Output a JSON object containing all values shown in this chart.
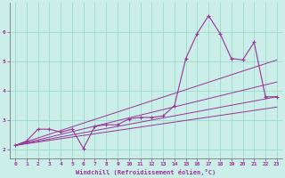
{
  "xlabel": "Windchill (Refroidissement éolien,°C)",
  "background_color": "#cceee8",
  "grid_color": "#99ddcc",
  "line_color": "#993399",
  "spine_color": "#666666",
  "xlim": [
    -0.5,
    23.5
  ],
  "ylim": [
    1.7,
    7.0
  ],
  "yticks": [
    2,
    3,
    4,
    5,
    6
  ],
  "xticks": [
    0,
    1,
    2,
    3,
    4,
    5,
    6,
    7,
    8,
    9,
    10,
    11,
    12,
    13,
    14,
    15,
    16,
    17,
    18,
    19,
    20,
    21,
    22,
    23
  ],
  "series1_x": [
    0,
    1,
    2,
    3,
    4,
    5,
    6,
    7,
    8,
    9,
    10,
    11,
    12,
    13,
    14,
    15,
    16,
    17,
    18,
    19,
    20,
    21,
    22,
    23
  ],
  "series1_y": [
    2.15,
    2.3,
    2.7,
    2.7,
    2.6,
    2.7,
    2.05,
    2.8,
    2.85,
    2.85,
    3.05,
    3.1,
    3.1,
    3.15,
    3.5,
    5.1,
    5.95,
    6.55,
    5.95,
    5.1,
    5.05,
    5.65,
    3.8,
    3.8
  ],
  "trend1_x": [
    0,
    23
  ],
  "trend1_y": [
    2.15,
    3.8
  ],
  "trend2_x": [
    0,
    23
  ],
  "trend2_y": [
    2.15,
    4.3
  ],
  "trend3_x": [
    0,
    23
  ],
  "trend3_y": [
    2.15,
    5.05
  ],
  "trend4_x": [
    0,
    23
  ],
  "trend4_y": [
    2.15,
    3.45
  ]
}
